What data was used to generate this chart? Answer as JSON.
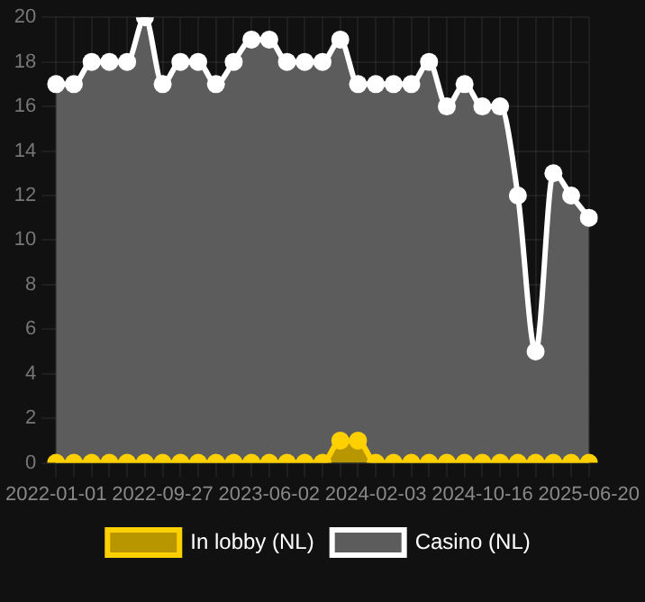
{
  "chart_data": {
    "type": "area",
    "categories": [
      "2022-01-01",
      null,
      null,
      null,
      null,
      null,
      "2022-09-27",
      null,
      null,
      null,
      null,
      null,
      "2023-06-02",
      null,
      null,
      null,
      null,
      null,
      "2024-02-03",
      null,
      null,
      null,
      null,
      null,
      "2024-10-16",
      null,
      null,
      null,
      null,
      null,
      "2025-06-20"
    ],
    "series": [
      {
        "name": "In lobby (NL)",
        "color": "#ffd000",
        "values": [
          0,
          0,
          0,
          0,
          0,
          0,
          0,
          0,
          0,
          0,
          0,
          0,
          0,
          0,
          0,
          0,
          1,
          1,
          0,
          0,
          0,
          0,
          0,
          0,
          0,
          0,
          0,
          0,
          0,
          0,
          0
        ]
      },
      {
        "name": "Casino (NL)",
        "color": "#ffffff",
        "values": [
          17,
          17,
          18,
          18,
          18,
          20,
          17,
          18,
          18,
          17,
          18,
          19,
          19,
          18,
          18,
          18,
          19,
          17,
          17,
          17,
          17,
          18,
          16,
          17,
          16,
          16,
          12,
          5,
          13,
          12,
          11
        ]
      }
    ],
    "ylim": [
      0,
      20
    ],
    "yticks": [
      0,
      2,
      4,
      6,
      8,
      10,
      12,
      14,
      16,
      18,
      20
    ],
    "grid": true,
    "legend": "bottom",
    "marker": "circle"
  }
}
